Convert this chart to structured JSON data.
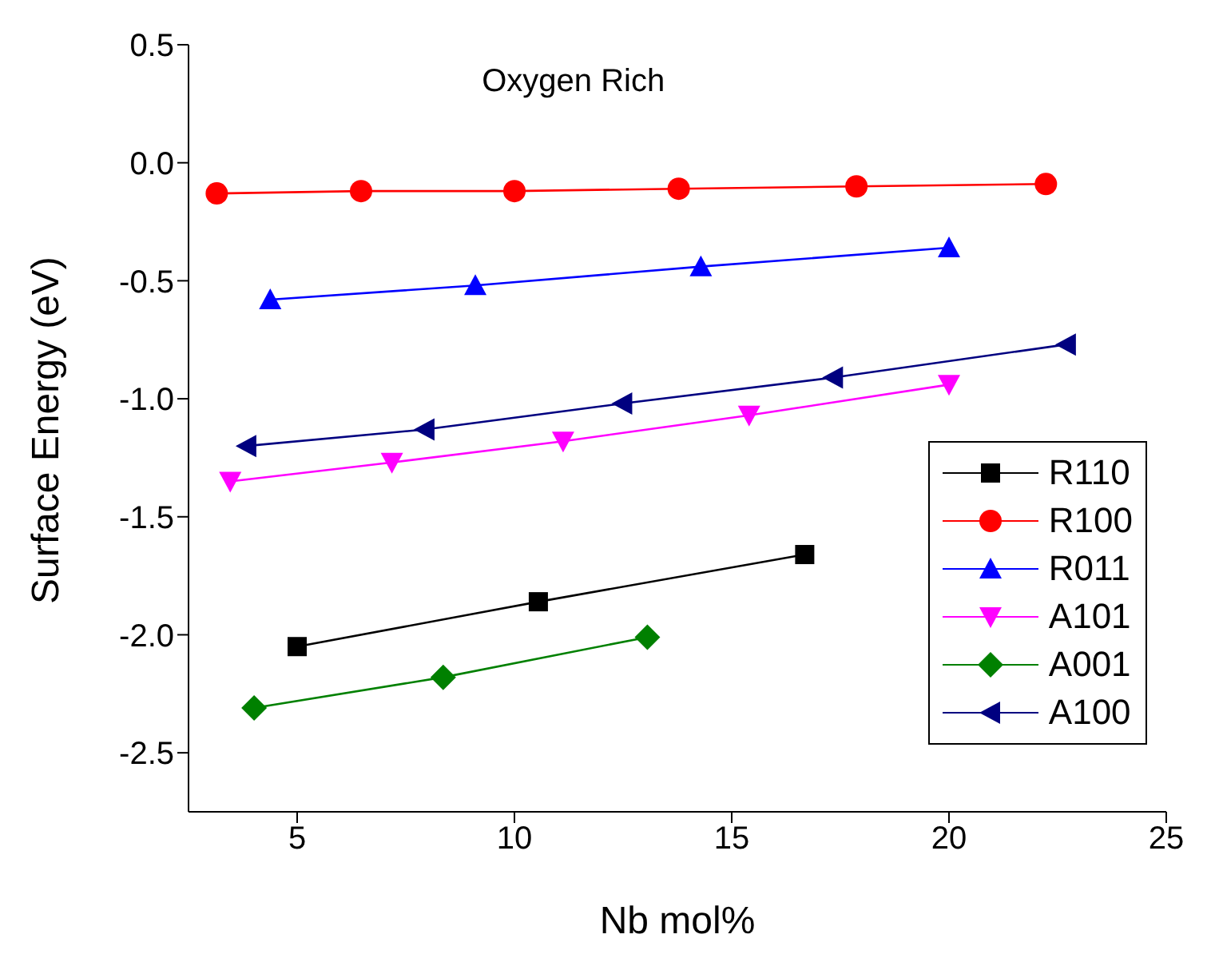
{
  "chart_data": {
    "type": "line",
    "xlabel": "Nb mol%",
    "ylabel": "Surface Energy (eV)",
    "annotations": [
      "Oxygen Rich"
    ],
    "xlim": [
      2.5,
      25
    ],
    "xticks": [
      5,
      10,
      15,
      20,
      25
    ],
    "ylim": [
      -2.75,
      0.5
    ],
    "yticks": [
      {
        "value": 0.5,
        "label": "0.5"
      },
      {
        "value": 0,
        "label": "0.0"
      },
      {
        "value": -0.5,
        "label": "-0.5"
      },
      {
        "value": -1,
        "label": "-1.0"
      },
      {
        "value": -1.5,
        "label": "-1.5"
      },
      {
        "value": -2,
        "label": "-2.0"
      },
      {
        "value": -2.5,
        "label": "-2.5"
      }
    ],
    "grid": false,
    "legend": "bottom right",
    "series": [
      {
        "name": "R110",
        "color": "#000000",
        "marker": "square",
        "x": [
          5,
          10.55,
          16.68
        ],
        "values": [
          -2.05,
          -1.86,
          -1.66
        ]
      },
      {
        "name": "R100",
        "color": "#ff0000",
        "marker": "circle",
        "x": [
          3.15,
          6.47,
          10.0,
          13.78,
          17.87,
          22.23
        ],
        "values": [
          -0.13,
          -0.12,
          -0.12,
          -0.11,
          -0.1,
          -0.09
        ]
      },
      {
        "name": "R011",
        "color": "#0000ff",
        "marker": "triangle",
        "x": [
          4.38,
          9.1,
          14.29,
          20.0
        ],
        "values": [
          -0.58,
          -0.52,
          -0.44,
          -0.36
        ]
      },
      {
        "name": "A101",
        "color": "#ff00ff",
        "marker": "triangle-down",
        "x": [
          3.46,
          7.18,
          11.12,
          15.4,
          20.0
        ],
        "values": [
          -1.35,
          -1.27,
          -1.18,
          -1.07,
          -0.94
        ]
      },
      {
        "name": "A001",
        "color": "#008000",
        "marker": "diamond",
        "x": [
          4.01,
          8.36,
          13.06
        ],
        "values": [
          -2.31,
          -2.18,
          -2.01
        ]
      },
      {
        "name": "A100",
        "color": "#000080",
        "marker": "triangle-left",
        "x": [
          3.84,
          7.94,
          12.49,
          17.34,
          22.7
        ],
        "values": [
          -1.2,
          -1.13,
          -1.02,
          -0.91,
          -0.77
        ]
      }
    ]
  }
}
